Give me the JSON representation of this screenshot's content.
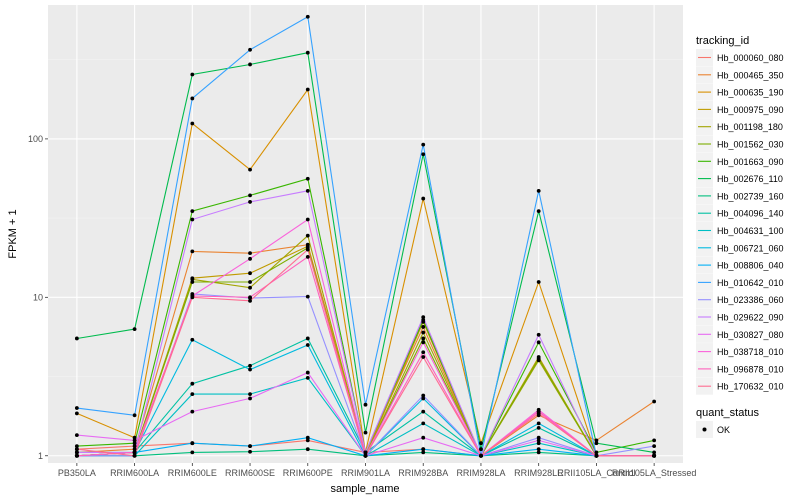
{
  "chart_data": {
    "type": "line",
    "xlabel": "sample_name",
    "ylabel": "FPKM + 1",
    "y_scale": "log10",
    "ylim": [
      0.9,
      700
    ],
    "y_ticks": [
      1,
      10,
      100
    ],
    "y_tick_labels": [
      "1",
      "10",
      "100"
    ],
    "grid": true,
    "legend_position": "right",
    "categories": [
      "PB350LA",
      "RRIM600LA",
      "RRIM600LE",
      "RRIM600SE",
      "RRIM600PE",
      "RRIM901LA",
      "RRIM928BA",
      "RRIM928LA",
      "RRIM928LE",
      "RRII105LA_Control",
      "RRII105LA_Stressed"
    ],
    "legend_title": "tracking_id",
    "series": [
      {
        "name": "Hb_000060_080",
        "color": "#F8766D",
        "values": [
          1.1,
          1.15,
          1.2,
          1.15,
          1.25,
          1.05,
          1.1,
          1.0,
          1.9,
          1.0,
          1.0
        ]
      },
      {
        "name": "Hb_000465_350",
        "color": "#EA8331",
        "values": [
          1.05,
          1.1,
          19.5,
          19.0,
          21.5,
          1.05,
          6.5,
          1.0,
          1.8,
          1.25,
          2.2
        ]
      },
      {
        "name": "Hb_000635_190",
        "color": "#D89000",
        "values": [
          1.85,
          1.3,
          125,
          64,
          205,
          1.05,
          42,
          1.2,
          12.5,
          1.0,
          1.0
        ]
      },
      {
        "name": "Hb_000975_090",
        "color": "#C09B00",
        "values": [
          1.0,
          1.05,
          13.2,
          14.2,
          21.0,
          1.0,
          7.0,
          1.0,
          4.2,
          1.0,
          1.0
        ]
      },
      {
        "name": "Hb_001198_180",
        "color": "#A3A500",
        "values": [
          1.0,
          1.05,
          13.0,
          11.5,
          24.5,
          1.0,
          6.0,
          1.0,
          4.0,
          1.0,
          1.0
        ]
      },
      {
        "name": "Hb_001562_030",
        "color": "#7CAE00",
        "values": [
          1.0,
          1.05,
          12.5,
          12.5,
          20.5,
          1.0,
          5.5,
          1.0,
          4.1,
          1.0,
          1.0
        ]
      },
      {
        "name": "Hb_001663_090",
        "color": "#39B600",
        "values": [
          1.15,
          1.2,
          35,
          44,
          56,
          1.05,
          7.2,
          1.0,
          5.2,
          1.05,
          1.25
        ]
      },
      {
        "name": "Hb_002676_110",
        "color": "#00BB4E",
        "values": [
          5.5,
          6.3,
          255,
          295,
          350,
          1.4,
          80,
          1.1,
          35,
          1.2,
          1.05
        ]
      },
      {
        "name": "Hb_002739_160",
        "color": "#00BF7D",
        "values": [
          1.0,
          1.0,
          1.05,
          1.06,
          1.1,
          1.0,
          1.05,
          1.0,
          1.05,
          1.0,
          1.0
        ]
      },
      {
        "name": "Hb_004096_140",
        "color": "#00C1A3",
        "values": [
          1.0,
          1.05,
          2.85,
          3.7,
          5.5,
          1.05,
          1.9,
          1.0,
          1.5,
          1.0,
          1.0
        ]
      },
      {
        "name": "Hb_004631_100",
        "color": "#00BFC4",
        "values": [
          1.0,
          1.0,
          2.45,
          2.45,
          3.1,
          1.0,
          1.6,
          1.0,
          1.2,
          1.0,
          1.0
        ]
      },
      {
        "name": "Hb_006721_060",
        "color": "#00BAE0",
        "values": [
          1.0,
          1.05,
          5.4,
          3.5,
          5.0,
          1.0,
          2.3,
          1.0,
          1.6,
          1.0,
          1.0
        ]
      },
      {
        "name": "Hb_008806_040",
        "color": "#00B0F6",
        "values": [
          1.05,
          1.05,
          1.2,
          1.15,
          1.3,
          1.0,
          1.1,
          1.0,
          1.1,
          1.0,
          1.0
        ]
      },
      {
        "name": "Hb_010642_010",
        "color": "#35A2FF",
        "values": [
          2.0,
          1.8,
          180,
          365,
          590,
          2.1,
          92,
          1.0,
          47,
          1.0,
          1.0
        ]
      },
      {
        "name": "Hb_023386_060",
        "color": "#9590FF",
        "values": [
          1.0,
          1.0,
          10.5,
          9.9,
          10.1,
          1.0,
          2.4,
          1.0,
          1.3,
          1.0,
          1.15
        ]
      },
      {
        "name": "Hb_029622_090",
        "color": "#C77CFF",
        "values": [
          1.05,
          1.05,
          31,
          40,
          47,
          1.05,
          7.5,
          1.0,
          5.8,
          1.0,
          1.0
        ]
      },
      {
        "name": "Hb_030827_080",
        "color": "#E76BF3",
        "values": [
          1.35,
          1.25,
          1.9,
          2.3,
          3.35,
          1.0,
          1.3,
          1.0,
          1.25,
          1.0,
          1.0
        ]
      },
      {
        "name": "Hb_038718_010",
        "color": "#FA62DB",
        "values": [
          1.0,
          1.05,
          10.2,
          17.5,
          31,
          1.0,
          5.2,
          1.0,
          1.95,
          1.0,
          1.0
        ]
      },
      {
        "name": "Hb_096878_010",
        "color": "#FF62BC",
        "values": [
          1.0,
          1.05,
          10.2,
          10.0,
          18.0,
          1.0,
          4.5,
          1.0,
          1.9,
          1.0,
          1.0
        ]
      },
      {
        "name": "Hb_170632_010",
        "color": "#FF6C91",
        "values": [
          1.1,
          1.0,
          10.0,
          9.5,
          20.0,
          1.0,
          4.2,
          1.0,
          1.85,
          1.0,
          1.0
        ]
      }
    ],
    "shape_legend": {
      "title": "quant_status",
      "items": [
        "OK"
      ]
    }
  }
}
